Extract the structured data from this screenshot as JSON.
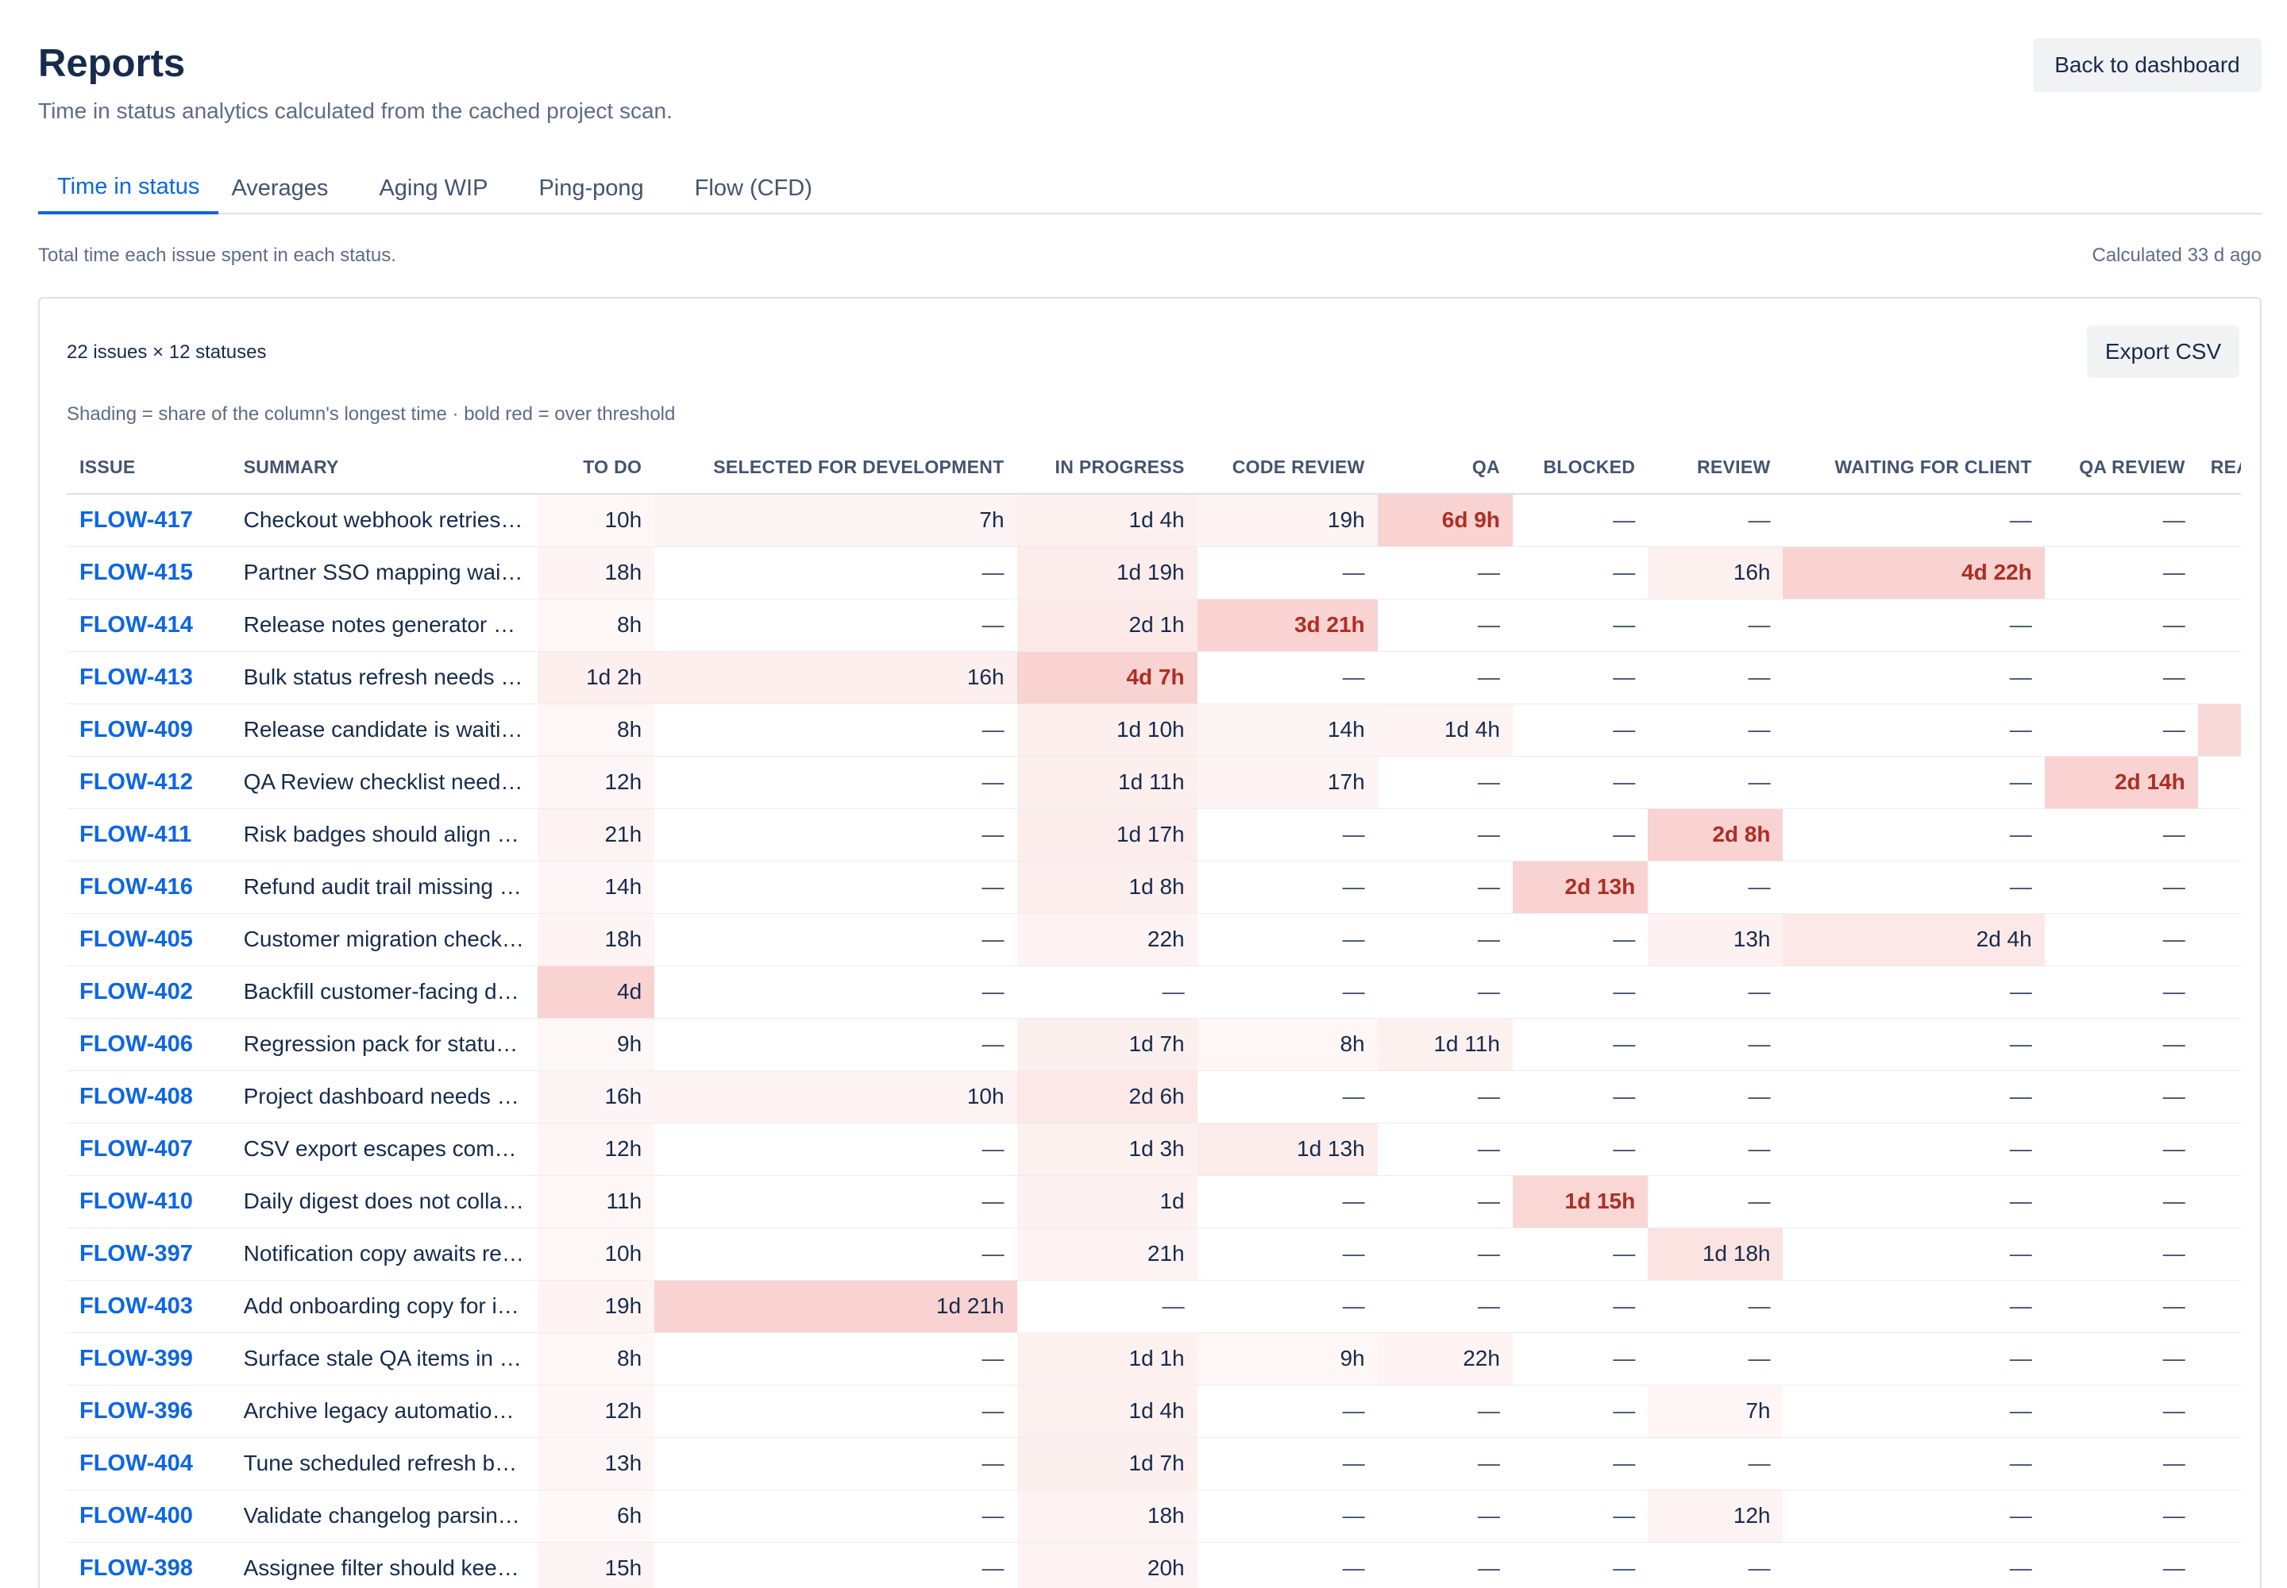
{
  "header": {
    "title": "Reports",
    "subtitle": "Time in status analytics calculated from the cached project scan.",
    "back_label": "Back to dashboard"
  },
  "tabs": [
    "Time in status",
    "Averages",
    "Aging WIP",
    "Ping-pong",
    "Flow (CFD)"
  ],
  "meta": {
    "description": "Total time each issue spent in each status.",
    "calculated": "Calculated 33 d ago"
  },
  "panel": {
    "count": "22 issues × 12 statuses",
    "export_label": "Export CSV",
    "legend": "Shading = share of the column's longest time · bold red = over threshold"
  },
  "colors": {
    "accent": "#0c66e4",
    "hot_text": "#ae2e24",
    "shade_rgb": "226, 80, 70"
  },
  "columns": [
    "Issue",
    "Summary",
    "To Do",
    "Selected for Development",
    "In Progress",
    "Code Review",
    "QA",
    "Blocked",
    "Review",
    "Waiting for Client",
    "QA Review",
    "Ready f"
  ],
  "rows": [
    {
      "issue": "FLOW-417",
      "summary": "Checkout webhook retries keep orders stuck in pending",
      "cells": [
        {
          "t": "10h",
          "s": 0.08
        },
        {
          "t": "7h",
          "s": 0.12
        },
        {
          "t": "1d 4h",
          "s": 0.22
        },
        {
          "t": "19h",
          "s": 0.15
        },
        {
          "t": "6d 9h",
          "s": 1.0,
          "hot": true
        },
        {
          "t": "—"
        },
        {
          "t": "—"
        },
        {
          "t": "—"
        },
        {
          "t": "—"
        },
        {
          "t": ""
        }
      ]
    },
    {
      "issue": "FLOW-415",
      "summary": "Partner SSO mapping waits for identity provider",
      "cells": [
        {
          "t": "18h",
          "s": 0.14
        },
        {
          "t": "—"
        },
        {
          "t": "1d 19h",
          "s": 0.35
        },
        {
          "t": "—"
        },
        {
          "t": "—"
        },
        {
          "t": "—"
        },
        {
          "t": "16h",
          "s": 0.22
        },
        {
          "t": "4d 22h",
          "s": 1.0,
          "hot": true
        },
        {
          "t": "—"
        },
        {
          "t": ""
        }
      ]
    },
    {
      "issue": "FLOW-414",
      "summary": "Release notes generator drops rollout warnings",
      "cells": [
        {
          "t": "8h",
          "s": 0.06
        },
        {
          "t": "—"
        },
        {
          "t": "2d 1h",
          "s": 0.4
        },
        {
          "t": "3d 21h",
          "s": 1.0,
          "hot": true
        },
        {
          "t": "—"
        },
        {
          "t": "—"
        },
        {
          "t": "—"
        },
        {
          "t": "—"
        },
        {
          "t": "—"
        },
        {
          "t": ""
        }
      ]
    },
    {
      "issue": "FLOW-413",
      "summary": "Bulk status refresh needs tenant-safe pagination",
      "cells": [
        {
          "t": "1d 2h",
          "s": 0.27
        },
        {
          "t": "16h",
          "s": 0.28
        },
        {
          "t": "4d 7h",
          "s": 1.0,
          "hot": true
        },
        {
          "t": "—"
        },
        {
          "t": "—"
        },
        {
          "t": "—"
        },
        {
          "t": "—"
        },
        {
          "t": "—"
        },
        {
          "t": "—"
        },
        {
          "t": ""
        }
      ]
    },
    {
      "issue": "FLOW-409",
      "summary": "Release candidate is waiting on final deployment sign-off",
      "cells": [
        {
          "t": "8h",
          "s": 0.06
        },
        {
          "t": "—"
        },
        {
          "t": "1d 10h",
          "s": 0.3
        },
        {
          "t": "14h",
          "s": 0.12
        },
        {
          "t": "1d 4h",
          "s": 0.18
        },
        {
          "t": "—"
        },
        {
          "t": "—"
        },
        {
          "t": "—"
        },
        {
          "t": "—"
        },
        {
          "t": "",
          "s": 0.85
        }
      ]
    },
    {
      "issue": "FLOW-412",
      "summary": "QA Review checklist needs clearer escalation steps",
      "cells": [
        {
          "t": "12h",
          "s": 0.1
        },
        {
          "t": "—"
        },
        {
          "t": "1d 11h",
          "s": 0.3
        },
        {
          "t": "17h",
          "s": 0.14
        },
        {
          "t": "—"
        },
        {
          "t": "—"
        },
        {
          "t": "—"
        },
        {
          "t": "—"
        },
        {
          "t": "2d 14h",
          "s": 1.0,
          "hot": true
        },
        {
          "t": ""
        }
      ]
    },
    {
      "issue": "FLOW-411",
      "summary": "Risk badges should align with team-specific thresholds",
      "cells": [
        {
          "t": "21h",
          "s": 0.16
        },
        {
          "t": "—"
        },
        {
          "t": "1d 17h",
          "s": 0.33
        },
        {
          "t": "—"
        },
        {
          "t": "—"
        },
        {
          "t": "—"
        },
        {
          "t": "2d 8h",
          "s": 1.0,
          "hot": true
        },
        {
          "t": "—"
        },
        {
          "t": "—"
        },
        {
          "t": ""
        }
      ]
    },
    {
      "issue": "FLOW-416",
      "summary": "Refund audit trail missing approval handoff",
      "cells": [
        {
          "t": "14h",
          "s": 0.1
        },
        {
          "t": "—"
        },
        {
          "t": "1d 8h",
          "s": 0.27
        },
        {
          "t": "—"
        },
        {
          "t": "—"
        },
        {
          "t": "2d 13h",
          "s": 1.0,
          "hot": true
        },
        {
          "t": "—"
        },
        {
          "t": "—"
        },
        {
          "t": "—"
        },
        {
          "t": ""
        }
      ]
    },
    {
      "issue": "FLOW-405",
      "summary": "Customer migration checklist is waiting for legal review",
      "cells": [
        {
          "t": "18h",
          "s": 0.14
        },
        {
          "t": "—"
        },
        {
          "t": "22h",
          "s": 0.18
        },
        {
          "t": "—"
        },
        {
          "t": "—"
        },
        {
          "t": "—"
        },
        {
          "t": "13h",
          "s": 0.2
        },
        {
          "t": "2d 4h",
          "s": 0.45
        },
        {
          "t": "—"
        },
        {
          "t": ""
        }
      ]
    },
    {
      "issue": "FLOW-402",
      "summary": "Backfill customer-facing docs with direct notices",
      "cells": [
        {
          "t": "4d",
          "s": 1.0
        },
        {
          "t": "—"
        },
        {
          "t": "—"
        },
        {
          "t": "—"
        },
        {
          "t": "—"
        },
        {
          "t": "—"
        },
        {
          "t": "—"
        },
        {
          "t": "—"
        },
        {
          "t": "—"
        },
        {
          "t": ""
        }
      ]
    },
    {
      "issue": "FLOW-406",
      "summary": "Regression pack for status timeline edge cases",
      "cells": [
        {
          "t": "9h",
          "s": 0.07
        },
        {
          "t": "—"
        },
        {
          "t": "1d 7h",
          "s": 0.26
        },
        {
          "t": "8h",
          "s": 0.08
        },
        {
          "t": "1d 11h",
          "s": 0.22
        },
        {
          "t": "—"
        },
        {
          "t": "—"
        },
        {
          "t": "—"
        },
        {
          "t": "—"
        },
        {
          "t": ""
        }
      ]
    },
    {
      "issue": "FLOW-408",
      "summary": "Project dashboard needs column picker persistence",
      "cells": [
        {
          "t": "16h",
          "s": 0.12
        },
        {
          "t": "10h",
          "s": 0.18
        },
        {
          "t": "2d 6h",
          "s": 0.45
        },
        {
          "t": "—"
        },
        {
          "t": "—"
        },
        {
          "t": "—"
        },
        {
          "t": "—"
        },
        {
          "t": "—"
        },
        {
          "t": "—"
        },
        {
          "t": ""
        }
      ]
    },
    {
      "issue": "FLOW-407",
      "summary": "CSV export escapes commas but not line breaks",
      "cells": [
        {
          "t": "12h",
          "s": 0.1
        },
        {
          "t": "—"
        },
        {
          "t": "1d 3h",
          "s": 0.24
        },
        {
          "t": "1d 13h",
          "s": 0.35
        },
        {
          "t": "—"
        },
        {
          "t": "—"
        },
        {
          "t": "—"
        },
        {
          "t": "—"
        },
        {
          "t": "—"
        },
        {
          "t": ""
        }
      ]
    },
    {
      "issue": "FLOW-410",
      "summary": "Daily digest does not collapse duplicate assignees",
      "cells": [
        {
          "t": "11h",
          "s": 0.08
        },
        {
          "t": "—"
        },
        {
          "t": "1d",
          "s": 0.2
        },
        {
          "t": "—"
        },
        {
          "t": "—"
        },
        {
          "t": "1d 15h",
          "s": 0.9,
          "hot": true
        },
        {
          "t": "—"
        },
        {
          "t": "—"
        },
        {
          "t": "—"
        },
        {
          "t": ""
        }
      ]
    },
    {
      "issue": "FLOW-397",
      "summary": "Notification copy awaits review from support lead",
      "cells": [
        {
          "t": "10h",
          "s": 0.08
        },
        {
          "t": "—"
        },
        {
          "t": "21h",
          "s": 0.18
        },
        {
          "t": "—"
        },
        {
          "t": "—"
        },
        {
          "t": "—"
        },
        {
          "t": "1d 18h",
          "s": 0.6
        },
        {
          "t": "—"
        },
        {
          "t": "—"
        },
        {
          "t": ""
        }
      ]
    },
    {
      "issue": "FLOW-403",
      "summary": "Add onboarding copy for ignored status records",
      "cells": [
        {
          "t": "19h",
          "s": 0.15
        },
        {
          "t": "1d 21h",
          "s": 1.0
        },
        {
          "t": "—"
        },
        {
          "t": "—"
        },
        {
          "t": "—"
        },
        {
          "t": "—"
        },
        {
          "t": "—"
        },
        {
          "t": "—"
        },
        {
          "t": "—"
        },
        {
          "t": ""
        }
      ]
    },
    {
      "issue": "FLOW-399",
      "summary": "Surface stale QA items in weekly status review",
      "cells": [
        {
          "t": "8h",
          "s": 0.06
        },
        {
          "t": "—"
        },
        {
          "t": "1d 1h",
          "s": 0.22
        },
        {
          "t": "9h",
          "s": 0.08
        },
        {
          "t": "22h",
          "s": 0.14
        },
        {
          "t": "—"
        },
        {
          "t": "—"
        },
        {
          "t": "—"
        },
        {
          "t": "—"
        },
        {
          "t": ""
        }
      ]
    },
    {
      "issue": "FLOW-396",
      "summary": "Archive legacy automation transition test data",
      "cells": [
        {
          "t": "12h",
          "s": 0.1
        },
        {
          "t": "—"
        },
        {
          "t": "1d 4h",
          "s": 0.24
        },
        {
          "t": "—"
        },
        {
          "t": "—"
        },
        {
          "t": "—"
        },
        {
          "t": "7h",
          "s": 0.1
        },
        {
          "t": "—"
        },
        {
          "t": "—"
        },
        {
          "t": ""
        }
      ]
    },
    {
      "issue": "FLOW-404",
      "summary": "Tune scheduled refresh budget for large projects",
      "cells": [
        {
          "t": "13h",
          "s": 0.1
        },
        {
          "t": "—"
        },
        {
          "t": "1d 7h",
          "s": 0.26
        },
        {
          "t": "—"
        },
        {
          "t": "—"
        },
        {
          "t": "—"
        },
        {
          "t": "—"
        },
        {
          "t": "—"
        },
        {
          "t": "—"
        },
        {
          "t": ""
        }
      ]
    },
    {
      "issue": "FLOW-400",
      "summary": "Validate changelog parsing for reassigned issues",
      "cells": [
        {
          "t": "6h",
          "s": 0.05
        },
        {
          "t": "—"
        },
        {
          "t": "18h",
          "s": 0.16
        },
        {
          "t": "—"
        },
        {
          "t": "—"
        },
        {
          "t": "—"
        },
        {
          "t": "12h",
          "s": 0.18
        },
        {
          "t": "—"
        },
        {
          "t": "—"
        },
        {
          "t": ""
        }
      ]
    },
    {
      "issue": "FLOW-398",
      "summary": "Assignee filter should keep unassigned work visible",
      "cells": [
        {
          "t": "15h",
          "s": 0.11
        },
        {
          "t": "—"
        },
        {
          "t": "20h",
          "s": 0.17
        },
        {
          "t": "—"
        },
        {
          "t": "—"
        },
        {
          "t": "—"
        },
        {
          "t": "—"
        },
        {
          "t": "—"
        },
        {
          "t": "—"
        },
        {
          "t": ""
        }
      ]
    }
  ]
}
